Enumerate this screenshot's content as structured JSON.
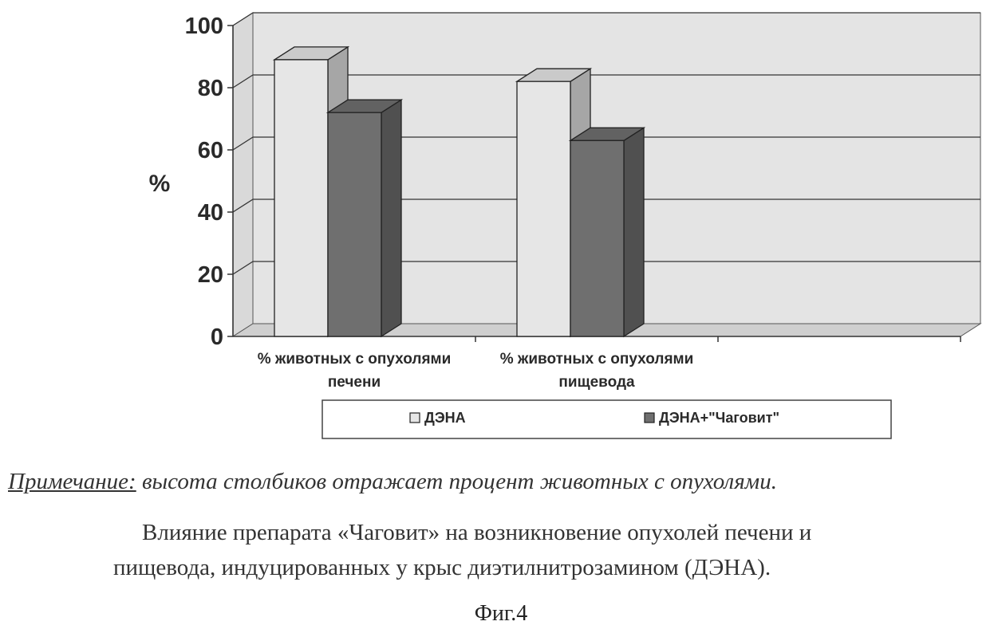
{
  "chart_data": {
    "type": "bar",
    "style": "3d-clustered-column",
    "ylabel": "%",
    "ylim": [
      0,
      100
    ],
    "yticks": [
      "0",
      "20",
      "40",
      "60",
      "80",
      "100"
    ],
    "grid": true,
    "categories": [
      [
        "% животных с опухолями",
        "печени"
      ],
      [
        "% животных с опухолями",
        "пищевода"
      ]
    ],
    "series": [
      {
        "name": "ДЭНА",
        "values": [
          89,
          82
        ],
        "color": "#e6e6e6"
      },
      {
        "name": "ДЭНА+\"Чаговит\"",
        "values": [
          72,
          63
        ],
        "color": "#6f6f6f"
      }
    ],
    "legend_position": "bottom"
  },
  "note": {
    "label": "Примечание:",
    "text": " высота столбиков отражает процент животных с опухолями."
  },
  "caption": {
    "line1": "Влияние препарата  «Чаговит»  на возникновение опухолей печени и",
    "line2": "пищевода, индуцированных у крыс диэтилнитрозамином (ДЭНА)."
  },
  "figure_label": "Фиг.4"
}
